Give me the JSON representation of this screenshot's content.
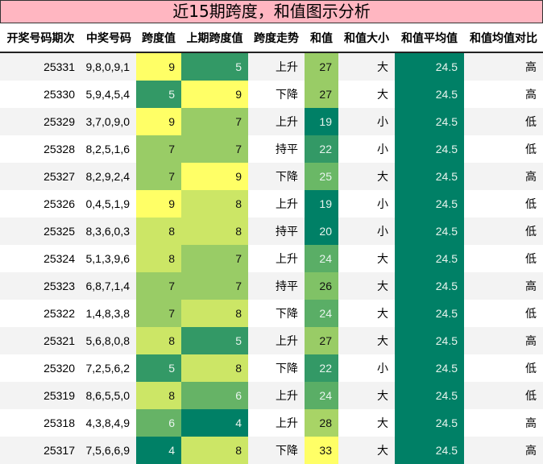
{
  "title": "近15期跨度，和值图示分析",
  "columns": [
    "开奖号码期次",
    "中奖号码",
    "跨度值",
    "上期跨度值",
    "跨度走势",
    "和值",
    "和值大小",
    "和值平均值",
    "和值均值对比"
  ],
  "colors": {
    "title_bg": "#ffb6c1",
    "scale": {
      "4": "#008066",
      "5": "#339966",
      "6": "#66b366",
      "7": "#99cc66",
      "8": "#cce666",
      "9": "#ffff66"
    },
    "sum_scale": {
      "19": "#008066",
      "20": "#008066",
      "22": "#339966",
      "24": "#5aae66",
      "25": "#6ab866",
      "26": "#80c266",
      "27": "#99cc66",
      "28": "#a8d466",
      "33": "#ffff66"
    },
    "avg_bg": "#008066"
  },
  "rows": [
    {
      "period": "25331",
      "numbers": "9,8,0,9,1",
      "span": "9",
      "prev_span": "5",
      "trend": "上升",
      "sum": "27",
      "size": "大",
      "avg": "24.5",
      "compare": "高"
    },
    {
      "period": "25330",
      "numbers": "5,9,4,5,4",
      "span": "5",
      "prev_span": "9",
      "trend": "下降",
      "sum": "27",
      "size": "大",
      "avg": "24.5",
      "compare": "高"
    },
    {
      "period": "25329",
      "numbers": "3,7,0,9,0",
      "span": "9",
      "prev_span": "7",
      "trend": "上升",
      "sum": "19",
      "size": "小",
      "avg": "24.5",
      "compare": "低"
    },
    {
      "period": "25328",
      "numbers": "8,2,5,1,6",
      "span": "7",
      "prev_span": "7",
      "trend": "持平",
      "sum": "22",
      "size": "小",
      "avg": "24.5",
      "compare": "低"
    },
    {
      "period": "25327",
      "numbers": "8,2,9,2,4",
      "span": "7",
      "prev_span": "9",
      "trend": "下降",
      "sum": "25",
      "size": "大",
      "avg": "24.5",
      "compare": "高"
    },
    {
      "period": "25326",
      "numbers": "0,4,5,1,9",
      "span": "9",
      "prev_span": "8",
      "trend": "上升",
      "sum": "19",
      "size": "小",
      "avg": "24.5",
      "compare": "低"
    },
    {
      "period": "25325",
      "numbers": "8,3,6,0,3",
      "span": "8",
      "prev_span": "8",
      "trend": "持平",
      "sum": "20",
      "size": "小",
      "avg": "24.5",
      "compare": "低"
    },
    {
      "period": "25324",
      "numbers": "5,1,3,9,6",
      "span": "8",
      "prev_span": "7",
      "trend": "上升",
      "sum": "24",
      "size": "大",
      "avg": "24.5",
      "compare": "低"
    },
    {
      "period": "25323",
      "numbers": "6,8,7,1,4",
      "span": "7",
      "prev_span": "7",
      "trend": "持平",
      "sum": "26",
      "size": "大",
      "avg": "24.5",
      "compare": "高"
    },
    {
      "period": "25322",
      "numbers": "1,4,8,3,8",
      "span": "7",
      "prev_span": "8",
      "trend": "下降",
      "sum": "24",
      "size": "大",
      "avg": "24.5",
      "compare": "低"
    },
    {
      "period": "25321",
      "numbers": "5,6,8,0,8",
      "span": "8",
      "prev_span": "5",
      "trend": "上升",
      "sum": "27",
      "size": "大",
      "avg": "24.5",
      "compare": "高"
    },
    {
      "period": "25320",
      "numbers": "7,2,5,6,2",
      "span": "5",
      "prev_span": "8",
      "trend": "下降",
      "sum": "22",
      "size": "小",
      "avg": "24.5",
      "compare": "低"
    },
    {
      "period": "25319",
      "numbers": "8,6,5,5,0",
      "span": "8",
      "prev_span": "6",
      "trend": "上升",
      "sum": "24",
      "size": "大",
      "avg": "24.5",
      "compare": "低"
    },
    {
      "period": "25318",
      "numbers": "4,3,8,4,9",
      "span": "6",
      "prev_span": "4",
      "trend": "上升",
      "sum": "28",
      "size": "大",
      "avg": "24.5",
      "compare": "高"
    },
    {
      "period": "25317",
      "numbers": "7,5,6,6,9",
      "span": "4",
      "prev_span": "8",
      "trend": "下降",
      "sum": "33",
      "size": "大",
      "avg": "24.5",
      "compare": "高"
    }
  ]
}
